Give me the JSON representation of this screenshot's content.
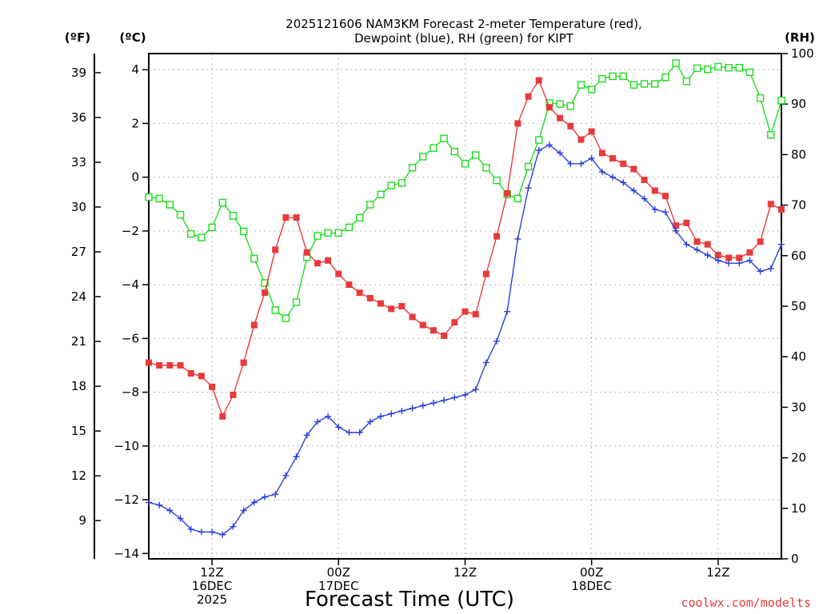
{
  "chart_data": {
    "type": "line",
    "title_line1": "2025121606 NAM3KM Forecast 2-meter Temperature (red),",
    "title_line2": "Dewpoint (blue), RH (green) for KIPT",
    "unit_f": "(ºF)",
    "unit_c": "(ºC)",
    "unit_rh": "(RH)",
    "xlabel": "Forecast Time (UTC)",
    "credit": "coolwx.com/modelts",
    "x_start_hour": 6,
    "x_end_hour": 66,
    "ylim_c": [
      -14.2,
      4.6
    ],
    "ylim_rh": [
      0,
      100
    ],
    "yticks_c": [
      "4",
      "2",
      "0",
      "−2",
      "−4",
      "−6",
      "−8",
      "−10",
      "−12",
      "−14"
    ],
    "yticks_c_values": [
      4,
      2,
      0,
      -2,
      -4,
      -6,
      -8,
      -10,
      -12,
      -14
    ],
    "yticks_f": [
      "39",
      "36",
      "33",
      "30",
      "27",
      "24",
      "21",
      "18",
      "15",
      "12",
      "9"
    ],
    "yticks_f_values": [
      39,
      36,
      33,
      30,
      27,
      24,
      21,
      18,
      15,
      12,
      9
    ],
    "yticks_rh": [
      "100",
      "90",
      "80",
      "70",
      "60",
      "50",
      "40",
      "30",
      "20",
      "10",
      "0"
    ],
    "yticks_rh_values": [
      100,
      90,
      80,
      70,
      60,
      50,
      40,
      30,
      20,
      10,
      0
    ],
    "xticks": [
      {
        "hour": 12,
        "line1": "12Z",
        "line2": "16DEC",
        "line3": "2025"
      },
      {
        "hour": 24,
        "line1": "00Z",
        "line2": "17DEC",
        "line3": ""
      },
      {
        "hour": 36,
        "line1": "12Z",
        "line2": "",
        "line3": ""
      },
      {
        "hour": 48,
        "line1": "00Z",
        "line2": "18DEC",
        "line3": ""
      },
      {
        "hour": 60,
        "line1": "12Z",
        "line2": "",
        "line3": ""
      }
    ],
    "series": [
      {
        "name": "2-meter Temperature",
        "units": "degC",
        "color": "#e83a3a",
        "marker": "filled-square",
        "values": [
          -6.9,
          -7.0,
          -7.0,
          -7.0,
          -7.3,
          -7.4,
          -7.8,
          -8.9,
          -8.1,
          -6.9,
          -5.5,
          -4.3,
          -2.7,
          -1.5,
          -1.5,
          -2.8,
          -3.2,
          -3.1,
          -3.6,
          -4.0,
          -4.3,
          -4.5,
          -4.7,
          -4.9,
          -4.8,
          -5.2,
          -5.5,
          -5.7,
          -5.9,
          -5.4,
          -5.0,
          -5.1,
          -3.6,
          -2.2,
          -0.6,
          2.0,
          3.0,
          3.6,
          2.6,
          2.2,
          1.9,
          1.4,
          1.7,
          0.9,
          0.7,
          0.5,
          0.3,
          -0.1,
          -0.5,
          -0.7,
          -1.8,
          -1.7,
          -2.4,
          -2.5,
          -2.9,
          -3.0,
          -3.0,
          -2.8,
          -2.4,
          -1.0,
          -1.2
        ]
      },
      {
        "name": "Dewpoint",
        "units": "degC",
        "color": "#2a40d8",
        "marker": "plus",
        "values": [
          -12.1,
          -12.2,
          -12.4,
          -12.7,
          -13.1,
          -13.2,
          -13.2,
          -13.3,
          -13.0,
          -12.4,
          -12.1,
          -11.9,
          -11.8,
          -11.1,
          -10.4,
          -9.6,
          -9.1,
          -8.9,
          -9.3,
          -9.5,
          -9.5,
          -9.1,
          -8.9,
          -8.8,
          -8.7,
          -8.6,
          -8.5,
          -8.4,
          -8.3,
          -8.2,
          -8.1,
          -7.9,
          -6.9,
          -6.1,
          -5.0,
          -2.3,
          -0.4,
          1.0,
          1.2,
          0.9,
          0.5,
          0.5,
          0.7,
          0.2,
          0.0,
          -0.2,
          -0.5,
          -0.8,
          -1.2,
          -1.3,
          -2.0,
          -2.5,
          -2.7,
          -2.9,
          -3.1,
          -3.2,
          -3.2,
          -3.1,
          -3.5,
          -3.4,
          -2.5
        ]
      },
      {
        "name": "RH",
        "units": "percent",
        "color": "#1fdc1f",
        "marker": "open-square",
        "values": [
          71.6,
          71.3,
          70.1,
          68.1,
          64.3,
          63.6,
          65.6,
          70.5,
          67.9,
          64.8,
          59.4,
          54.6,
          49.2,
          47.6,
          50.8,
          59.7,
          63.9,
          64.5,
          64.5,
          65.6,
          67.5,
          70.1,
          72.1,
          73.9,
          74.4,
          77.4,
          79.6,
          81.3,
          83.2,
          80.6,
          78.2,
          79.9,
          77.4,
          74.9,
          72.1,
          71.3,
          77.6,
          82.9,
          90.2,
          90.0,
          89.6,
          93.8,
          92.9,
          95.0,
          95.5,
          95.5,
          93.8,
          94.0,
          94.0,
          95.3,
          98.1,
          94.5,
          97.1,
          96.9,
          97.4,
          97.2,
          97.2,
          96.3,
          91.2,
          83.9,
          90.7
        ]
      }
    ]
  }
}
